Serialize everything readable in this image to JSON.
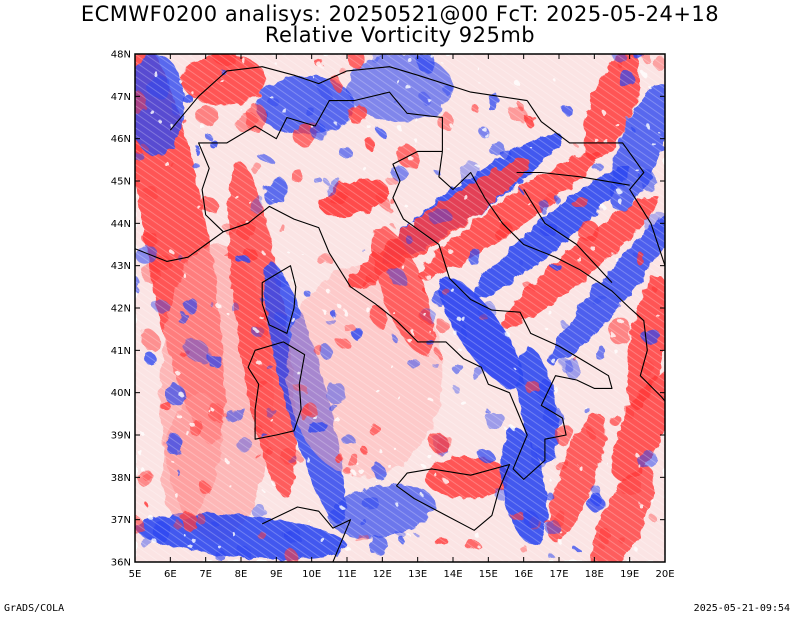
{
  "title_line1": "ECMWF0200 analisys: 20250521@00 FcT: 2025-05-24+18",
  "title_line2": "Relative Vorticity 925mb",
  "x_labels": [
    "5E",
    "6E",
    "7E",
    "8E",
    "9E",
    "10E",
    "11E",
    "12E",
    "13E",
    "14E",
    "15E",
    "16E",
    "17E",
    "18E",
    "19E",
    "20E"
  ],
  "y_labels": [
    "48N",
    "47N",
    "46N",
    "45N",
    "44N",
    "43N",
    "42N",
    "41N",
    "40N",
    "39N",
    "38N",
    "37N",
    "36N"
  ],
  "lon_range": [
    5,
    20
  ],
  "lat_range": [
    36,
    48
  ],
  "colors": {
    "positive": "#ff3b3b",
    "negative": "#2f48f0",
    "coast": "#000000"
  },
  "footer_left": "GrADS/COLA",
  "footer_right": "2025-05-21-09:54"
}
